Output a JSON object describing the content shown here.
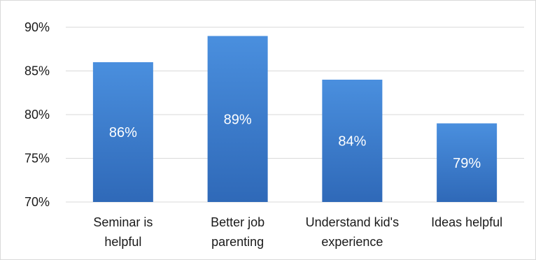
{
  "chart_data": {
    "type": "bar",
    "title": "",
    "xlabel": "",
    "ylabel": "",
    "categories": [
      [
        "Seminar is",
        "helpful"
      ],
      [
        "Better job",
        "parenting"
      ],
      [
        "Understand kid's",
        "experience"
      ],
      [
        "Ideas helpful"
      ]
    ],
    "values": [
      86,
      89,
      84,
      79
    ],
    "data_labels": [
      "86%",
      "89%",
      "84%",
      "79%"
    ],
    "ylim": [
      70,
      90
    ],
    "yticks": [
      70,
      75,
      80,
      85,
      90
    ],
    "ytick_labels": [
      "70%",
      "75%",
      "80%",
      "85%",
      "90%"
    ],
    "grid": true,
    "legend": "none",
    "colors": {
      "bar_top": "#4a8fde",
      "bar_bottom": "#2f69b8",
      "grid": "#d9d9d9"
    }
  }
}
